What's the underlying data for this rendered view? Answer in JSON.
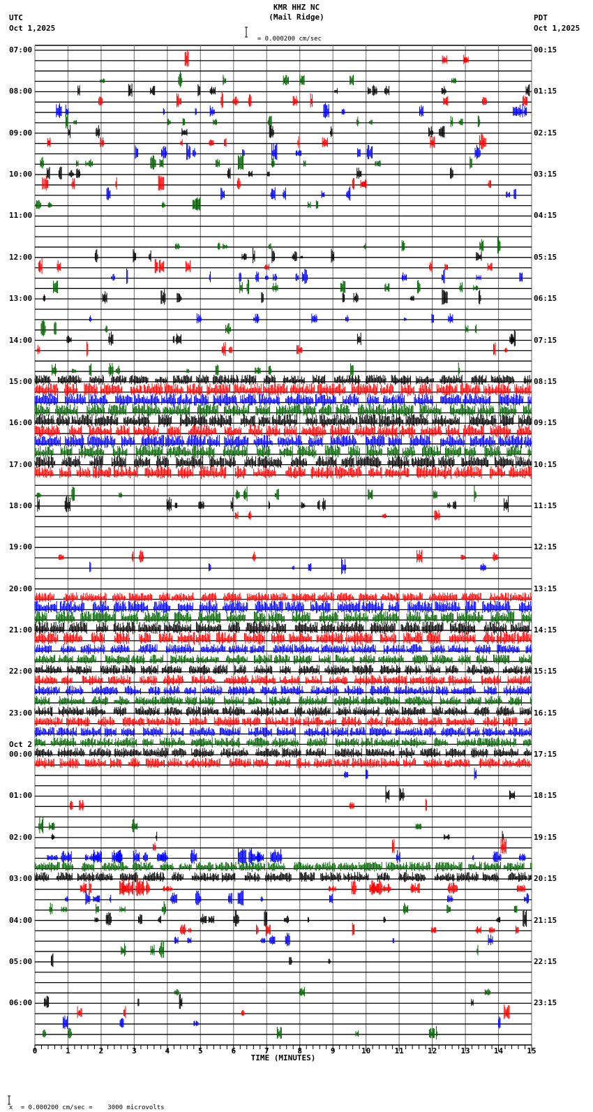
{
  "header": {
    "station": "KMR HHZ NC",
    "location": "(Mail Ridge)",
    "left_tz": "UTC",
    "left_date": "Oct 1,2025",
    "right_tz": "PDT",
    "right_date": "Oct 1,2025",
    "scale_top": "= 0.000200 cm/sec",
    "scale_bottom": "= 0.000200 cm/sec =    3000 microvolts",
    "scale_bottom_prefix": "x"
  },
  "colors": {
    "trace_cycle": [
      "#000000",
      "#ff0000",
      "#0000ff",
      "#006400"
    ],
    "grid_vertical": "#808080",
    "baseline": "#000000"
  },
  "chart_data": {
    "type": "line",
    "title": "KMR HHZ NC (Mail Ridge)",
    "subtitle": "= 0.000200 cm/sec",
    "xlabel": "TIME (MINUTES)",
    "ylabel_left": "UTC",
    "ylabel_right": "PDT",
    "xlim": [
      0,
      15
    ],
    "x_ticks": [
      "0",
      "1",
      "2",
      "3",
      "4",
      "5",
      "6",
      "7",
      "8",
      "9",
      "10",
      "11",
      "12",
      "13",
      "14",
      "15"
    ],
    "x_minor_tick_step": 0.2,
    "traces_per_hour": 4,
    "trace_minutes": 15,
    "grid": true,
    "left_labels": [
      {
        "row": 0,
        "text": "07:00"
      },
      {
        "row": 4,
        "text": "08:00"
      },
      {
        "row": 8,
        "text": "09:00"
      },
      {
        "row": 12,
        "text": "10:00"
      },
      {
        "row": 16,
        "text": "11:00"
      },
      {
        "row": 20,
        "text": "12:00"
      },
      {
        "row": 24,
        "text": "13:00"
      },
      {
        "row": 28,
        "text": "14:00"
      },
      {
        "row": 32,
        "text": "15:00"
      },
      {
        "row": 36,
        "text": "16:00"
      },
      {
        "row": 40,
        "text": "17:00"
      },
      {
        "row": 44,
        "text": "18:00"
      },
      {
        "row": 48,
        "text": "19:00"
      },
      {
        "row": 52,
        "text": "20:00"
      },
      {
        "row": 56,
        "text": "21:00"
      },
      {
        "row": 60,
        "text": "22:00"
      },
      {
        "row": 64,
        "text": "23:00"
      },
      {
        "row": 68,
        "text": "00:00",
        "date": "Oct 2"
      },
      {
        "row": 72,
        "text": "01:00"
      },
      {
        "row": 76,
        "text": "02:00"
      },
      {
        "row": 80,
        "text": "03:00"
      },
      {
        "row": 84,
        "text": "04:00"
      },
      {
        "row": 88,
        "text": "05:00"
      },
      {
        "row": 92,
        "text": "06:00"
      }
    ],
    "right_labels": [
      {
        "row": 0,
        "text": "00:15"
      },
      {
        "row": 4,
        "text": "01:15"
      },
      {
        "row": 8,
        "text": "02:15"
      },
      {
        "row": 12,
        "text": "03:15"
      },
      {
        "row": 16,
        "text": "04:15"
      },
      {
        "row": 20,
        "text": "05:15"
      },
      {
        "row": 24,
        "text": "06:15"
      },
      {
        "row": 28,
        "text": "07:15"
      },
      {
        "row": 32,
        "text": "08:15"
      },
      {
        "row": 36,
        "text": "09:15"
      },
      {
        "row": 40,
        "text": "10:15"
      },
      {
        "row": 44,
        "text": "11:15"
      },
      {
        "row": 48,
        "text": "12:15"
      },
      {
        "row": 52,
        "text": "13:15"
      },
      {
        "row": 56,
        "text": "14:15"
      },
      {
        "row": 60,
        "text": "15:15"
      },
      {
        "row": 64,
        "text": "16:15"
      },
      {
        "row": 68,
        "text": "17:15"
      },
      {
        "row": 72,
        "text": "18:15"
      },
      {
        "row": 76,
        "text": "19:15"
      },
      {
        "row": 80,
        "text": "20:15"
      },
      {
        "row": 84,
        "text": "21:15"
      },
      {
        "row": 88,
        "text": "22:15"
      },
      {
        "row": 92,
        "text": "23:15"
      }
    ],
    "activity_level_by_row": [
      0,
      1,
      0,
      2,
      3,
      3,
      3,
      3,
      2,
      3,
      3,
      3,
      3,
      3,
      3,
      2,
      0,
      0,
      0,
      2,
      3,
      3,
      3,
      3,
      3,
      0,
      2,
      2,
      2,
      2,
      0,
      3,
      6,
      8,
      8,
      8,
      9,
      9,
      9,
      9,
      9,
      8,
      0,
      3,
      3,
      1,
      0,
      0,
      0,
      2,
      2,
      0,
      0,
      7,
      8,
      8,
      8,
      8,
      6,
      6,
      7,
      7,
      7,
      7,
      7,
      7,
      7,
      7,
      6,
      6,
      1,
      0,
      1,
      1,
      0,
      1,
      1,
      1,
      5,
      7,
      7,
      4,
      3,
      3,
      3,
      3,
      2,
      1,
      1,
      0,
      0,
      1,
      1,
      1,
      1,
      2
    ],
    "notes": "96 helicorder traces (15 min each) from 07:00 UTC Oct 1 to 07:00 UTC Oct 2; colors cycle black/red/blue/green. Heavy continuous activity 15:00-17:30 and 20:45-00:30 UTC; moderate bursts 02:45-03:30 UTC."
  },
  "axis": {
    "xlabel": "TIME (MINUTES)"
  }
}
